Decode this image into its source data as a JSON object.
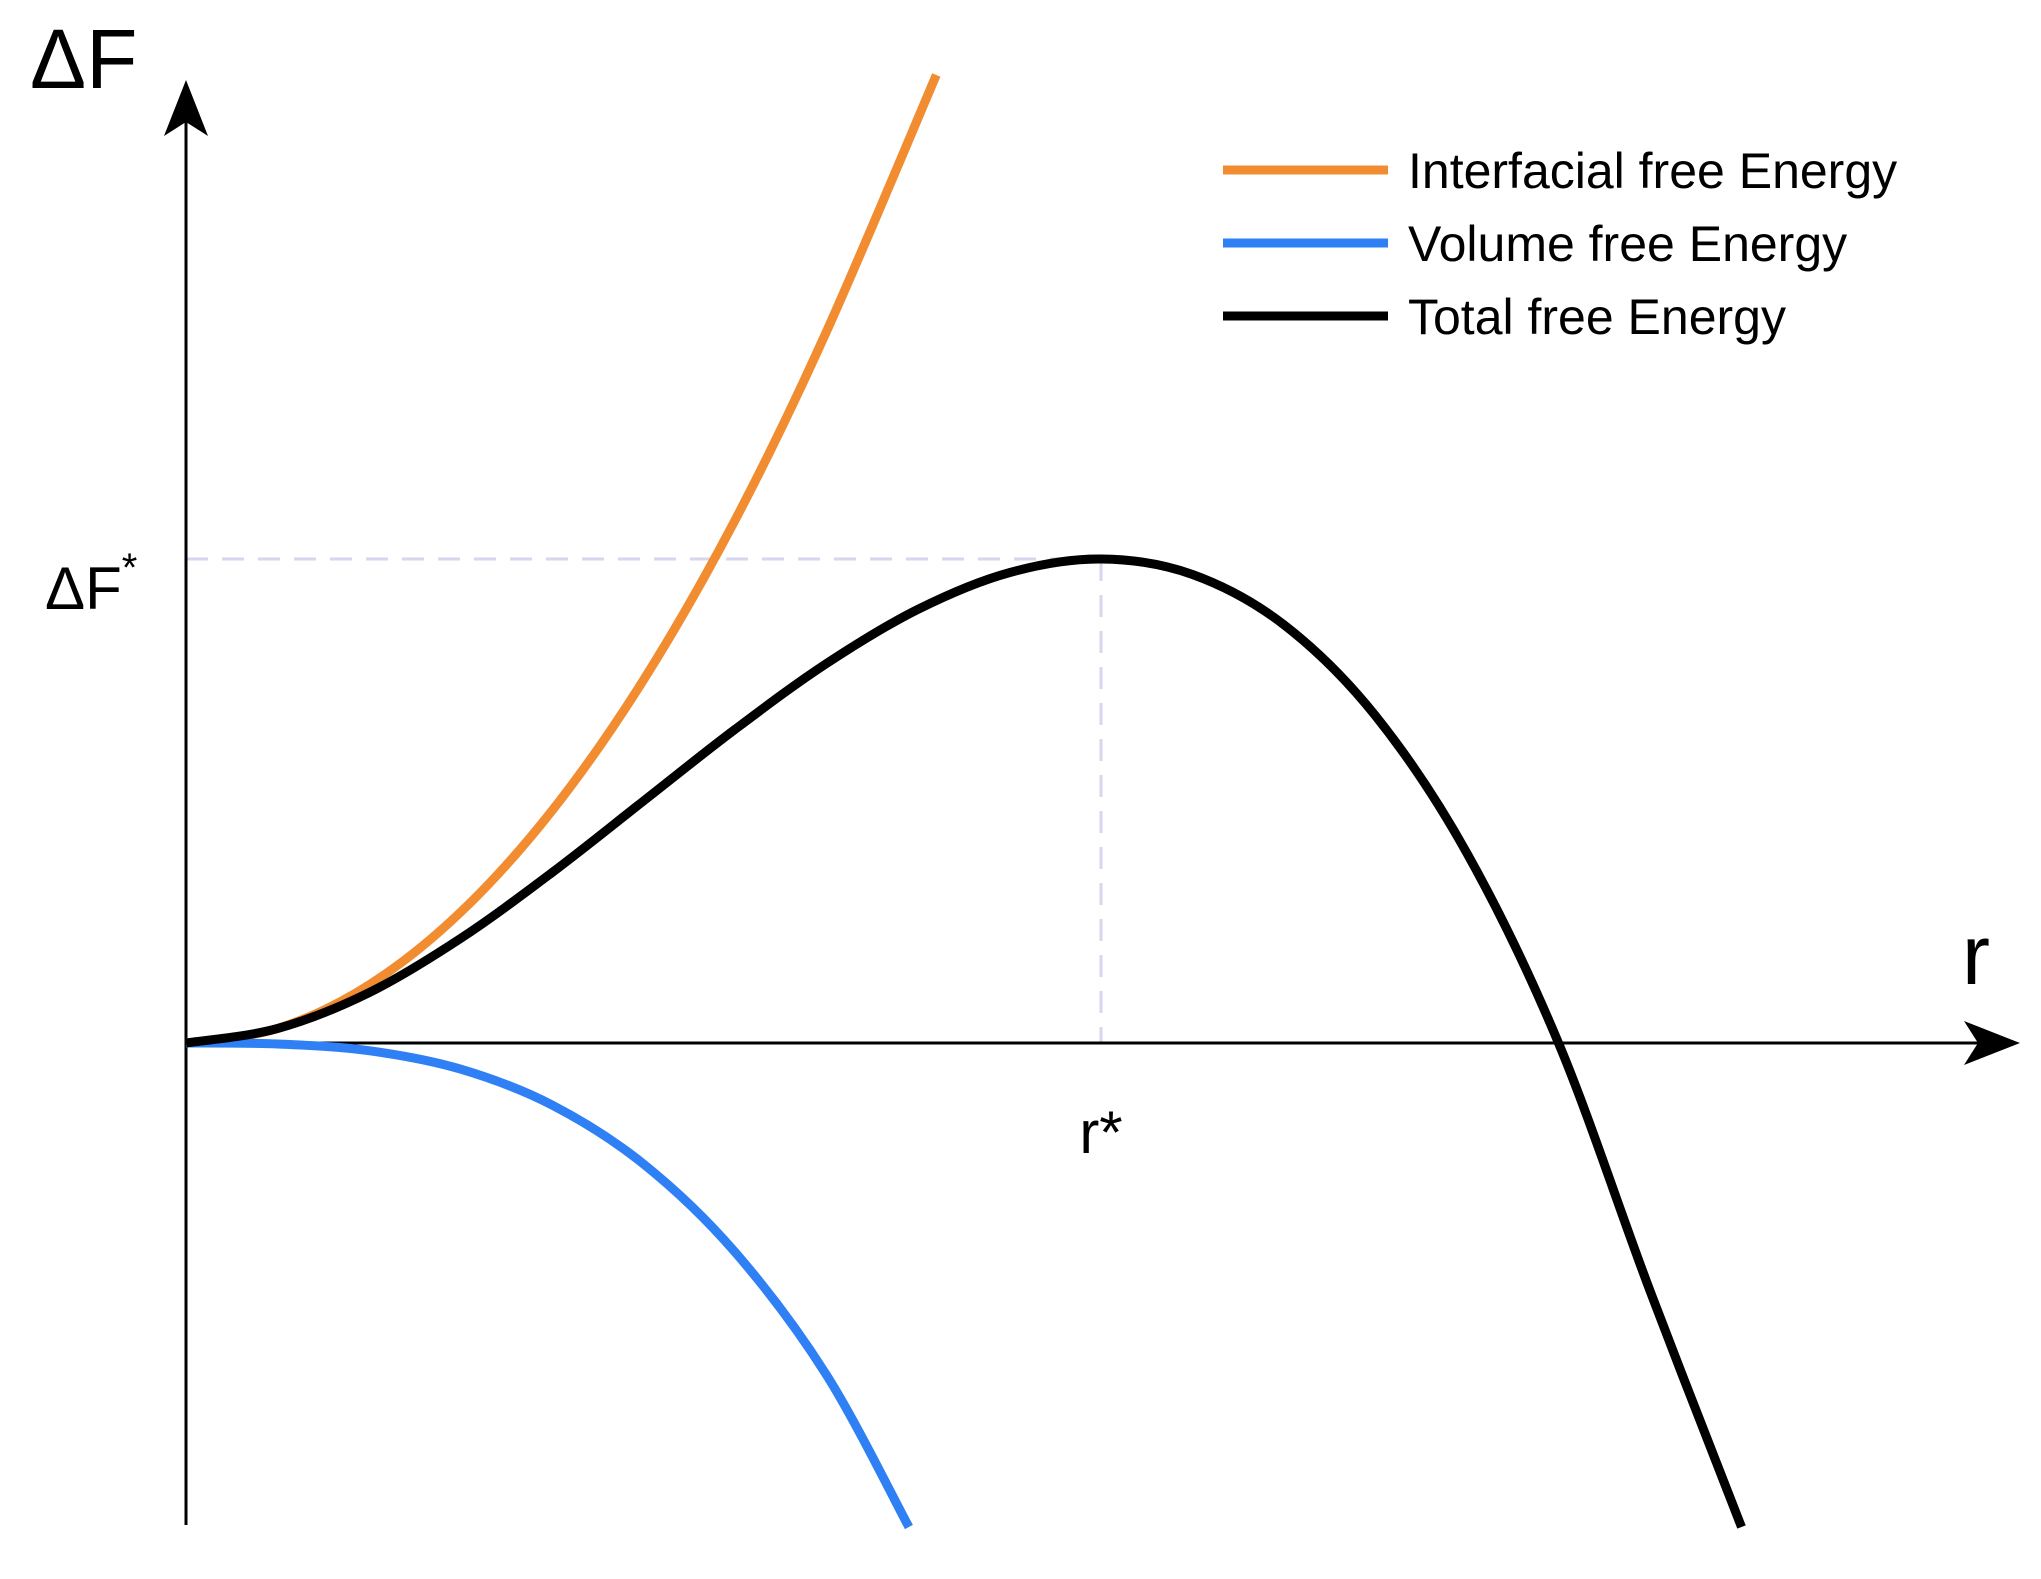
{
  "chart_data": {
    "type": "line",
    "title": "",
    "xlabel": "r",
    "ylabel": "ΔF",
    "grid": false,
    "legend_position": "top-right",
    "annotations": {
      "x_marker": "r*",
      "y_marker_base": "ΔF",
      "y_marker_sup": "*"
    },
    "x_marker_value": 1.0,
    "y_marker_value": 1.0,
    "xlim": [
      0,
      2.0
    ],
    "ylim": [
      -1.0,
      2.0
    ],
    "series": [
      {
        "name": "Interfacial free Energy",
        "color": "#f28c30",
        "x": [
          0,
          0.1,
          0.2,
          0.3,
          0.4,
          0.5,
          0.6,
          0.7,
          0.82
        ],
        "y": [
          0,
          0.03,
          0.12,
          0.27,
          0.48,
          0.75,
          1.08,
          1.47,
          2.0
        ]
      },
      {
        "name": "Volume free Energy",
        "color": "#2f7ff5",
        "x": [
          0,
          0.1,
          0.2,
          0.3,
          0.4,
          0.5,
          0.6,
          0.7,
          0.79
        ],
        "y": [
          0,
          -0.002,
          -0.016,
          -0.054,
          -0.128,
          -0.25,
          -0.432,
          -0.686,
          -1.0
        ]
      },
      {
        "name": "Total free Energy",
        "color": "#000000",
        "x": [
          0,
          0.1,
          0.2,
          0.3,
          0.4,
          0.5,
          0.6,
          0.7,
          0.8,
          0.9,
          1.0,
          1.1,
          1.2,
          1.3,
          1.4,
          1.5,
          1.6,
          1.7
        ],
        "y": [
          0,
          0.03,
          0.104,
          0.216,
          0.352,
          0.5,
          0.648,
          0.784,
          0.896,
          0.972,
          1.0,
          0.968,
          0.864,
          0.676,
          0.392,
          0.0,
          -0.512,
          -1.0
        ]
      }
    ]
  }
}
